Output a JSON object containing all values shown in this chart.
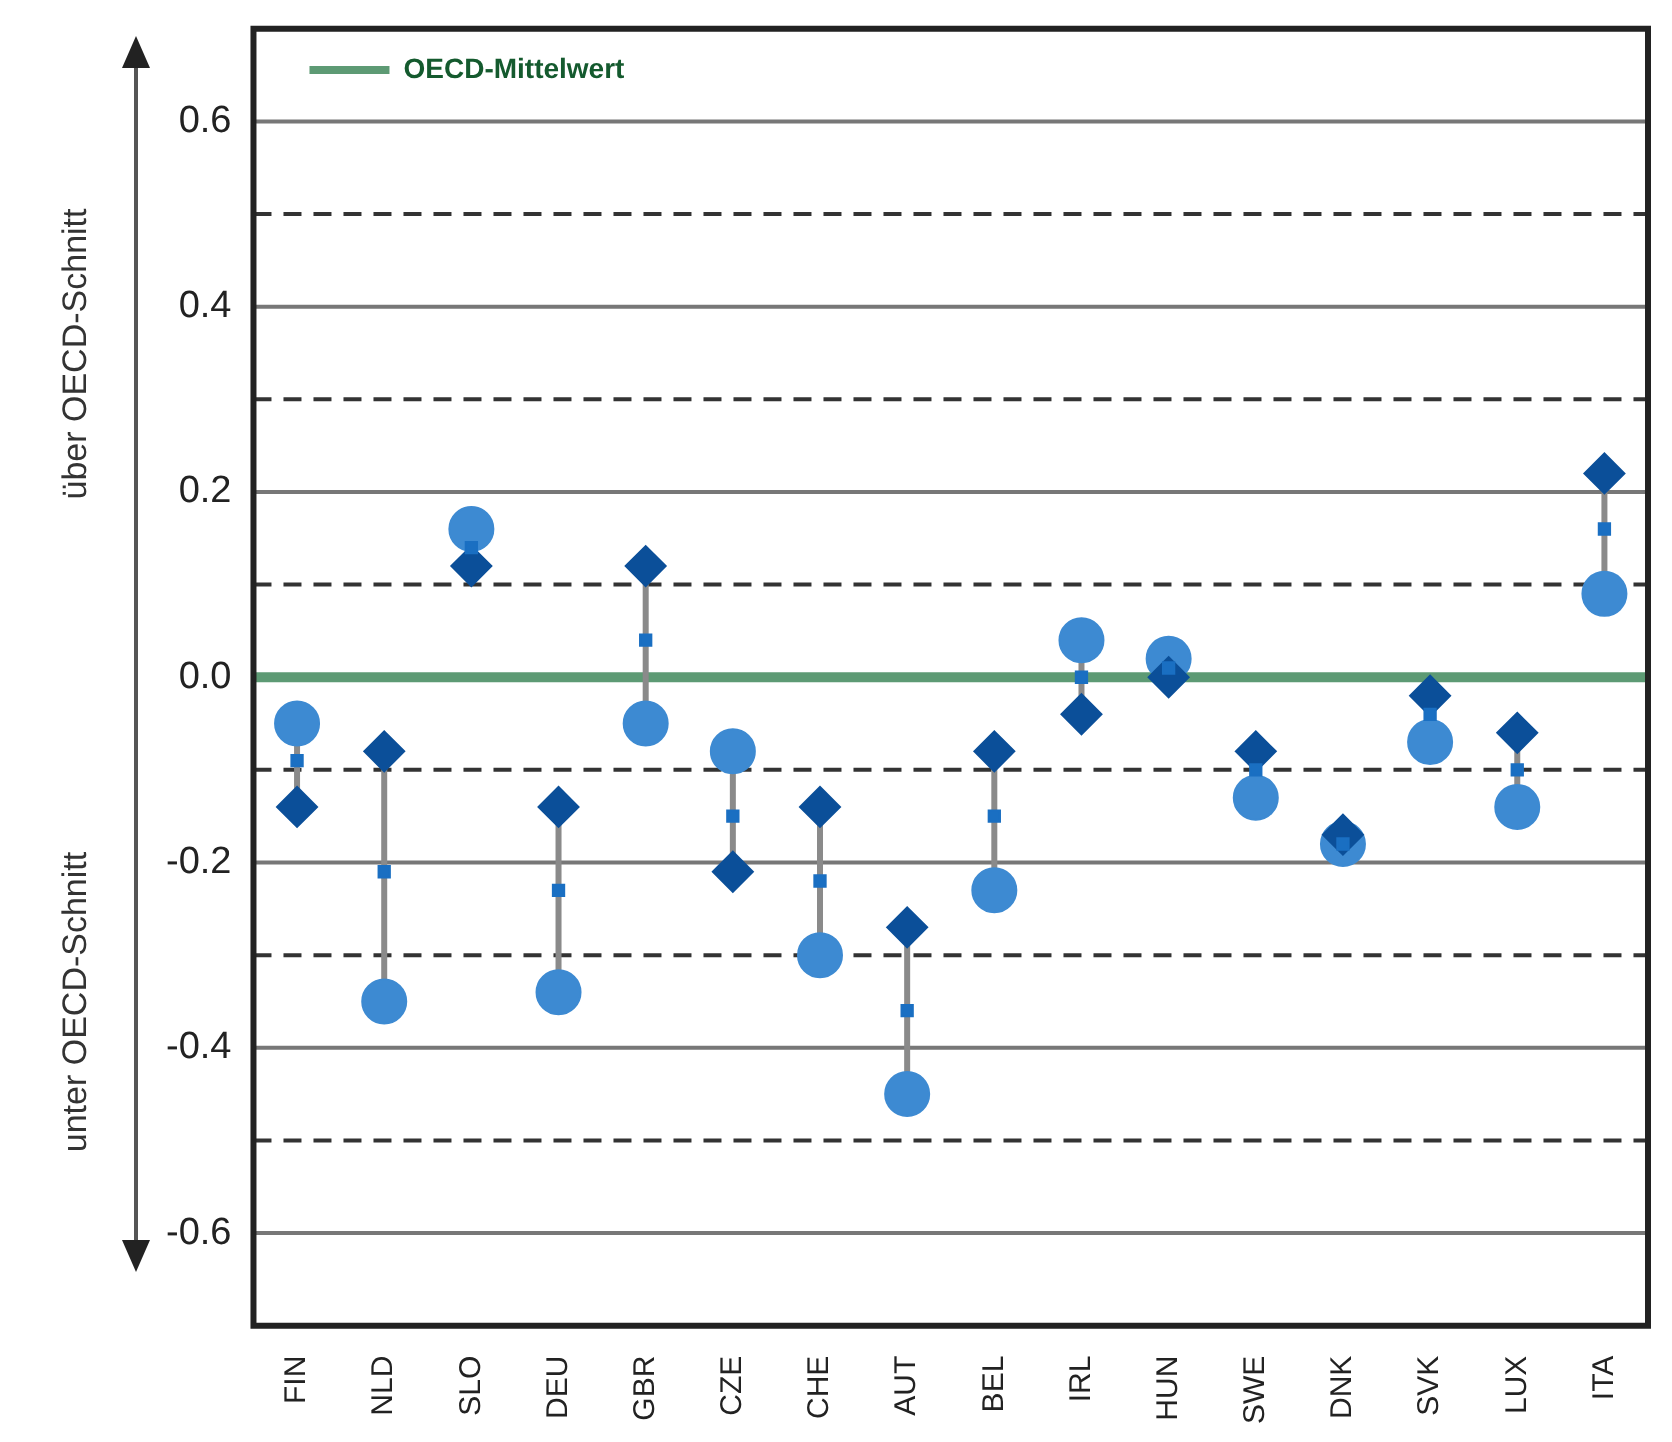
{
  "chart_data": {
    "type": "scatter",
    "categories": [
      "FIN",
      "NLD",
      "SLO",
      "DEU",
      "GBR",
      "CZE",
      "CHE",
      "AUT",
      "BEL",
      "IRL",
      "HUN",
      "SWE",
      "DNK",
      "SVK",
      "LUX",
      "ITA"
    ],
    "series": [
      {
        "color": "#0b4f99",
        "marker": "diamond",
        "values": [
          -0.14,
          -0.08,
          0.12,
          -0.14,
          0.12,
          -0.21,
          -0.14,
          -0.27,
          -0.08,
          -0.04,
          0.0,
          -0.08,
          -0.17,
          -0.02,
          -0.06,
          0.22
        ]
      },
      {
        "color": "#3d8ad2",
        "marker": "circle",
        "values": [
          -0.05,
          -0.35,
          0.16,
          -0.34,
          -0.05,
          -0.08,
          -0.3,
          -0.45,
          -0.23,
          0.04,
          0.02,
          -0.13,
          -0.18,
          -0.07,
          -0.14,
          0.09
        ]
      },
      {
        "color": "#1a6fc2",
        "marker": "square",
        "values": [
          -0.09,
          -0.21,
          0.14,
          -0.23,
          0.04,
          -0.15,
          -0.22,
          -0.36,
          -0.15,
          0.0,
          0.01,
          -0.1,
          -0.18,
          -0.04,
          -0.1,
          0.16
        ]
      }
    ],
    "ylim": [
      -0.7,
      0.7
    ],
    "yticks": [
      -0.6,
      {
        "value": -0.5,
        "label": null
      },
      -0.4,
      {
        "value": -0.3,
        "label": null
      },
      -0.2,
      {
        "value": -0.1,
        "label": null
      },
      {
        "value": 0,
        "label": "0.0"
      },
      {
        "value": 0.1,
        "label": null
      },
      0.2,
      {
        "value": 0.3,
        "label": null
      },
      0.4,
      {
        "value": 0.5,
        "label": null
      },
      0.6
    ],
    "grid": "y",
    "ref_lines": [
      {
        "axis": "y",
        "value": 0,
        "label": "OECD-Mittelwert",
        "color": "#5d9a74"
      }
    ],
    "legend": "top left",
    "annotations": [
      "über OECD-Schnitt",
      "unter OECD-Schnitt"
    ]
  }
}
